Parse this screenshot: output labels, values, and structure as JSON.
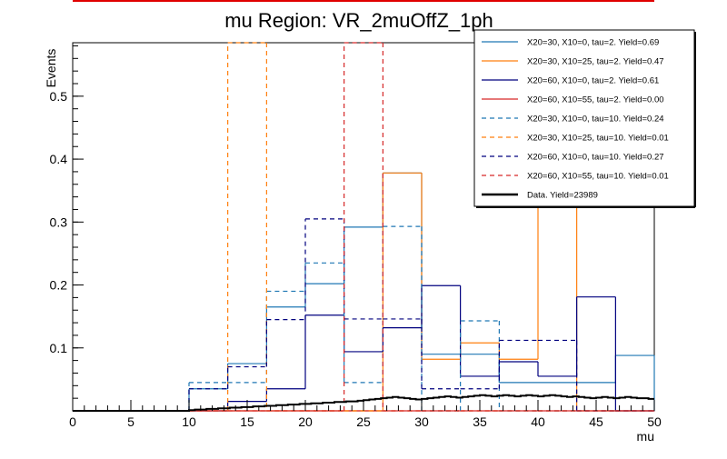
{
  "chart_data": {
    "type": "histogram-step",
    "title": "mu Region: VR_2muOffZ_1ph",
    "xlabel": "mu",
    "ylabel": "Events",
    "xlim": [
      0,
      50
    ],
    "ylim": [
      0,
      0.585
    ],
    "x_ticks": [
      0,
      5,
      10,
      15,
      20,
      25,
      30,
      35,
      40,
      45,
      50
    ],
    "y_ticks": [
      0.1,
      0.2,
      0.3,
      0.4,
      0.5
    ],
    "bin_edges": [
      0,
      3.33,
      6.67,
      10,
      13.33,
      16.67,
      20,
      23.33,
      26.67,
      30,
      33.33,
      36.67,
      40,
      43.33,
      46.67,
      50
    ],
    "colors": {
      "blue": "#1f77b4",
      "orange": "#ff7f0e",
      "navy": "#00007f",
      "red": "#d62728",
      "black": "#000000",
      "title_bar": "#e00000"
    },
    "series": [
      {
        "name": "s1",
        "label": "X20=30, X10=0, tau=2. Yield=0.69",
        "color": "#1f77b4",
        "dash": false,
        "values": [
          0,
          0,
          0,
          0.035,
          0.075,
          0.165,
          0.202,
          0.292,
          0.378,
          0.09,
          0.09,
          0.045,
          0.045,
          0.045,
          0.088
        ]
      },
      {
        "name": "s2",
        "label": "X20=30, X10=25, tau=2. Yield=0.47",
        "color": "#ff7f0e",
        "dash": false,
        "values": [
          0,
          0,
          0,
          0,
          0,
          0,
          0,
          0,
          0.378,
          0.082,
          0.108,
          0.082,
          0.585,
          0,
          0
        ]
      },
      {
        "name": "s3",
        "label": "X20=60, X10=0, tau=2. Yield=0.61",
        "color": "#00007f",
        "dash": false,
        "values": [
          0,
          0,
          0,
          0,
          0.015,
          0.035,
          0.152,
          0.094,
          0.132,
          0.199,
          0.055,
          0.078,
          0.055,
          0.181,
          0
        ]
      },
      {
        "name": "s4",
        "label": "X20=60, X10=55, tau=2. Yield=0.00",
        "color": "#d62728",
        "dash": false,
        "values": [
          0,
          0,
          0,
          0,
          0,
          0,
          0,
          0,
          0,
          0,
          0,
          0,
          0,
          0,
          0
        ]
      },
      {
        "name": "s5",
        "label": "X20=30, X10=0, tau=10. Yield=0.24",
        "color": "#1f77b4",
        "dash": true,
        "values": [
          0,
          0,
          0,
          0.045,
          0.045,
          0.19,
          0.235,
          0.045,
          0.293,
          0,
          0.143,
          0,
          0,
          0,
          0
        ]
      },
      {
        "name": "s6",
        "label": "X20=30, X10=25, tau=10. Yield=0.01",
        "color": "#ff7f0e",
        "dash": true,
        "values": [
          0,
          0,
          0,
          0,
          0.585,
          0,
          0,
          0,
          0,
          0,
          0,
          0,
          0,
          0,
          0
        ]
      },
      {
        "name": "s7",
        "label": "X20=60, X10=0, tau=10. Yield=0.27",
        "color": "#00007f",
        "dash": true,
        "values": [
          0,
          0,
          0,
          0.035,
          0.07,
          0.145,
          0.305,
          0.146,
          0.146,
          0.035,
          0.035,
          0.112,
          0.112,
          0,
          0
        ]
      },
      {
        "name": "s8",
        "label": "X20=60, X10=55, tau=10. Yield=0.01",
        "color": "#d62728",
        "dash": true,
        "values": [
          0,
          0,
          0,
          0,
          0,
          0,
          0,
          0.585,
          0,
          0,
          0,
          0,
          0,
          0,
          0
        ]
      }
    ],
    "data_series": {
      "label": "Data. Yield=23989",
      "color": "#000000",
      "bin_width": 0.5,
      "values": [
        0,
        0,
        0,
        0,
        0,
        0,
        0,
        0,
        0,
        0,
        0,
        0,
        0,
        0,
        0,
        0,
        0,
        0,
        0,
        0,
        0.001,
        0.002,
        0.002,
        0.003,
        0.003,
        0.004,
        0.004,
        0.005,
        0.005,
        0.006,
        0.006,
        0.007,
        0.007,
        0.008,
        0.008,
        0.009,
        0.009,
        0.01,
        0.01,
        0.011,
        0.011,
        0.012,
        0.012,
        0.013,
        0.013,
        0.014,
        0.014,
        0.015,
        0.015,
        0.016,
        0.017,
        0.018,
        0.019,
        0.02,
        0.021,
        0.022,
        0.021,
        0.02,
        0.019,
        0.018,
        0.019,
        0.02,
        0.021,
        0.022,
        0.023,
        0.022,
        0.021,
        0.022,
        0.023,
        0.024,
        0.025,
        0.024,
        0.023,
        0.024,
        0.025,
        0.024,
        0.023,
        0.024,
        0.025,
        0.024,
        0.023,
        0.024,
        0.025,
        0.024,
        0.023,
        0.022,
        0.023,
        0.022,
        0.021,
        0.02,
        0.021,
        0.022,
        0.021,
        0.02,
        0.021,
        0.022,
        0.021,
        0.02,
        0.02,
        0.019
      ]
    }
  }
}
